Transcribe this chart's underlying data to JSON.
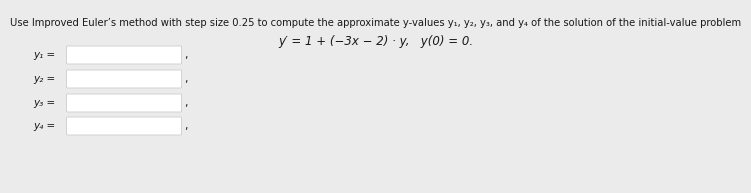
{
  "title_line1": "Use Improved Euler’s method with step size 0.25 to compute the approximate y-values y₁, y₂, y₃, and y₄ of the solution of the initial-value problem",
  "title_line2": "y′ = 1 + (−3x − 2) · y,   y(0) = 0.",
  "labels": [
    "y₁ =",
    "y₂ =",
    "y₃ =",
    "y₄ ="
  ],
  "background_color": "#ebebeb",
  "box_color": "#ffffff",
  "box_edge_color": "#cccccc",
  "text_color": "#1a1a1a",
  "font_size_title": 7.2,
  "font_size_eq": 8.5,
  "font_size_labels": 7.5
}
